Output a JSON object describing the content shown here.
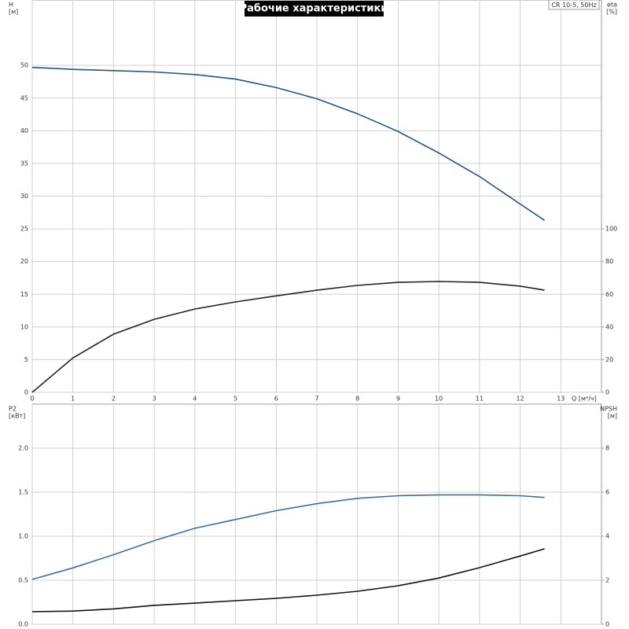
{
  "chart_data": [
    {
      "type": "line",
      "title": "Рабочие характеристики",
      "annotation": "CR 10-5, 50Hz",
      "ylabel": "H",
      "yunit": "[м]",
      "y2label": "eta",
      "y2unit": "[%]",
      "xlabel": "Q [м³/ч]",
      "x": [
        0,
        1,
        2,
        3,
        4,
        5,
        6,
        7,
        8,
        9,
        10,
        11,
        12,
        12.6
      ],
      "xlim": [
        0,
        14
      ],
      "xticks": [
        0,
        1,
        2,
        3,
        4,
        5,
        6,
        7,
        8,
        9,
        10,
        11,
        12,
        13
      ],
      "xtick_labels": true,
      "ylim": [
        0,
        60
      ],
      "yticks": [
        0,
        5,
        10,
        15,
        20,
        25,
        30,
        35,
        40,
        45,
        50
      ],
      "y2lim": [
        0,
        240
      ],
      "y2ticks": [
        0,
        20,
        40,
        60,
        80,
        100
      ],
      "grid": true,
      "series": [
        {
          "name": "H",
          "color": "#24528e",
          "values": [
            49.7,
            49.4,
            49.2,
            49.0,
            48.6,
            47.9,
            46.6,
            44.9,
            42.6,
            39.9,
            36.6,
            33.0,
            28.8,
            26.3
          ]
        },
        {
          "name": "eta",
          "color": "#222222",
          "axis": "y2",
          "values": [
            0,
            21,
            35.6,
            44.7,
            51,
            55.3,
            59,
            62.5,
            65.4,
            67.3,
            67.8,
            67.3,
            65,
            62.5
          ]
        }
      ]
    },
    {
      "type": "line",
      "ylabel": "P2",
      "yunit": "[кВт]",
      "y2label": "NPSH",
      "y2unit": "[м]",
      "x": [
        0,
        1,
        2,
        3,
        4,
        5,
        6,
        7,
        8,
        9,
        10,
        11,
        12,
        12.6
      ],
      "xlim": [
        0,
        14
      ],
      "xticks": [
        0,
        1,
        2,
        3,
        4,
        5,
        6,
        7,
        8,
        9,
        10,
        11,
        12,
        13
      ],
      "xtick_labels": false,
      "ylim": [
        0,
        2.5
      ],
      "yticks": [
        {
          "value": 0,
          "label": "0.0"
        },
        0.5,
        {
          "value": 1,
          "label": "1.0"
        },
        1.5,
        {
          "value": 2,
          "label": "2.0"
        }
      ],
      "y2lim": [
        0,
        10
      ],
      "y2ticks": [
        0,
        2,
        4,
        6,
        8
      ],
      "grid": true,
      "series": [
        {
          "name": "P2",
          "color": "#3a6ea5",
          "values": [
            0.51,
            0.64,
            0.79,
            0.95,
            1.09,
            1.19,
            1.29,
            1.37,
            1.43,
            1.46,
            1.47,
            1.47,
            1.46,
            1.44
          ]
        },
        {
          "name": "NPSH",
          "color": "#111111",
          "axis": "y2",
          "values": [
            0.57,
            0.6,
            0.7,
            0.86,
            0.96,
            1.07,
            1.18,
            1.32,
            1.5,
            1.75,
            2.1,
            2.57,
            3.1,
            3.43
          ]
        }
      ]
    }
  ]
}
